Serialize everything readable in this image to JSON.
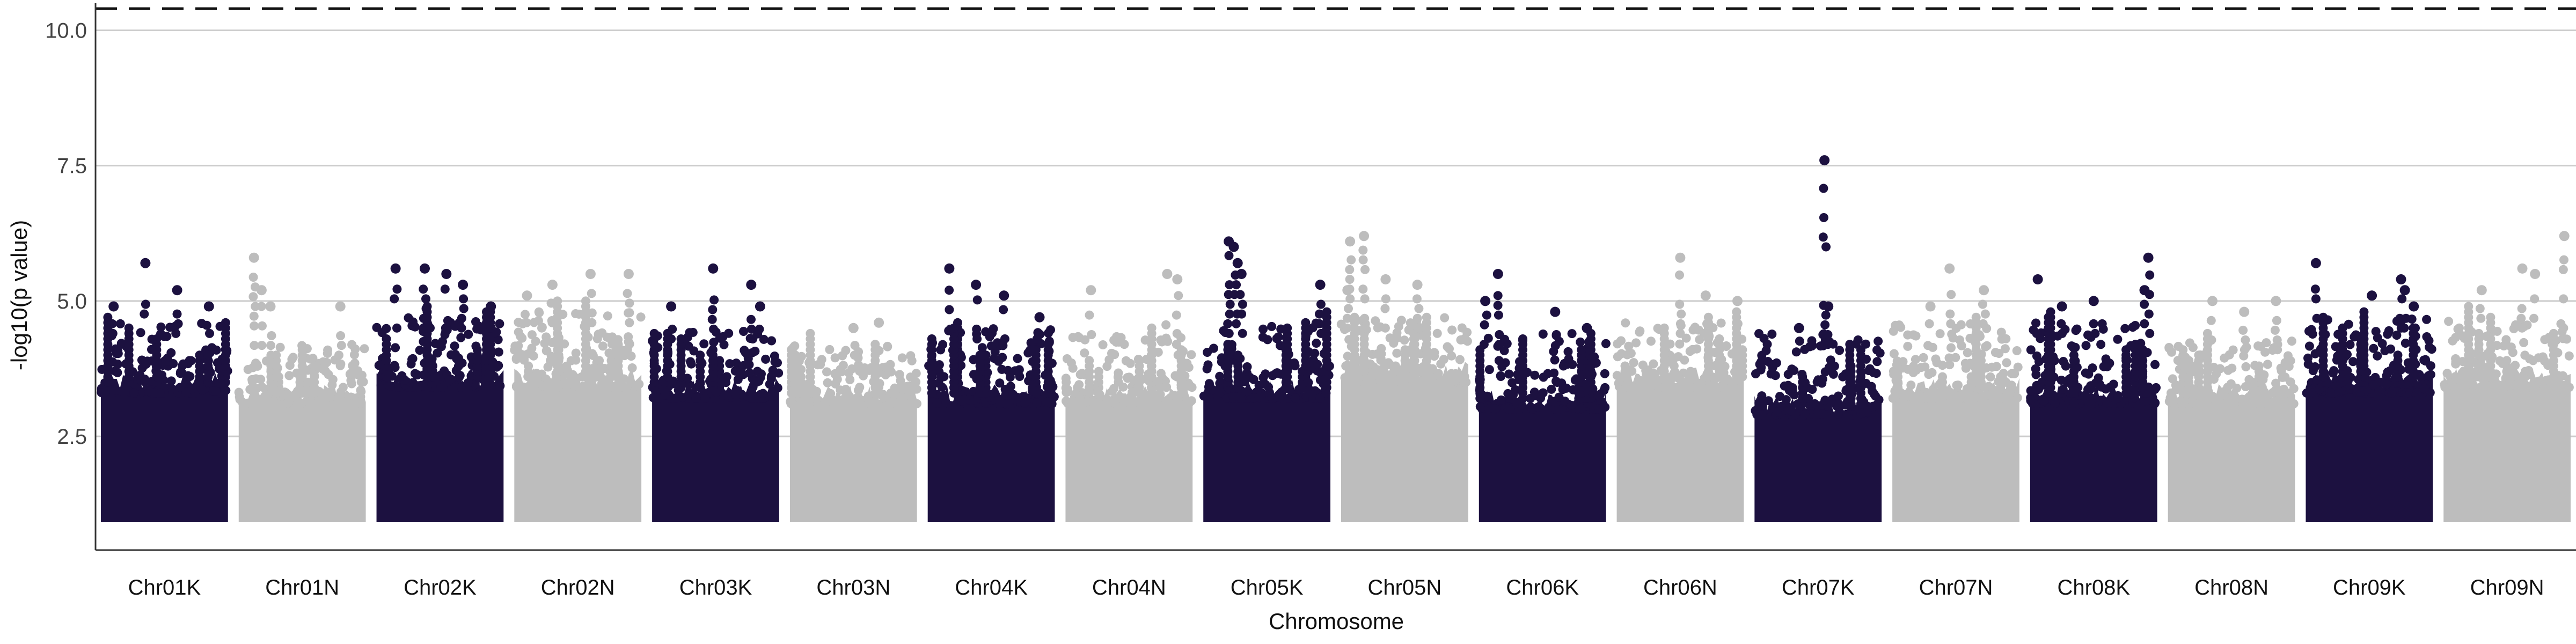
{
  "chart_data": {
    "type": "scatter",
    "subtype": "manhattan",
    "title": "",
    "xlabel": "Chromosome",
    "ylabel": "-log10(p value)",
    "ylim": [
      0.4,
      10.5
    ],
    "yticks": [
      2.5,
      5.0,
      7.5,
      10.0
    ],
    "ytick_labels": [
      "2.5",
      "5.0",
      "7.5",
      "10.0"
    ],
    "grid": "horizontal major lines only",
    "legend": "none",
    "colors": {
      "K": "#1c1140",
      "N": "#bdbdbd",
      "threshold": "#111111",
      "grid": "#cccccc"
    },
    "point_floor": 1.0,
    "threshold": {
      "y": 10.4,
      "style": "dashed"
    },
    "chromosomes": [
      {
        "name": "Chr01K",
        "color": "K",
        "dense_top": 3.5,
        "spike_top": 4.4,
        "peaks": [
          [
            0.35,
            5.7
          ],
          [
            0.1,
            4.9
          ],
          [
            0.6,
            5.2
          ],
          [
            0.85,
            4.9
          ]
        ]
      },
      {
        "name": "Chr01N",
        "color": "N",
        "dense_top": 3.3,
        "spike_top": 4.0,
        "peaks": [
          [
            0.12,
            5.8
          ],
          [
            0.18,
            5.2
          ],
          [
            0.25,
            4.9
          ],
          [
            0.8,
            4.9
          ]
        ]
      },
      {
        "name": "Chr02K",
        "color": "K",
        "dense_top": 3.6,
        "spike_top": 4.5,
        "peaks": [
          [
            0.15,
            5.6
          ],
          [
            0.38,
            5.6
          ],
          [
            0.55,
            5.5
          ],
          [
            0.68,
            5.3
          ],
          [
            0.9,
            4.9
          ]
        ]
      },
      {
        "name": "Chr02N",
        "color": "N",
        "dense_top": 3.6,
        "spike_top": 4.6,
        "peaks": [
          [
            0.1,
            5.1
          ],
          [
            0.3,
            5.3
          ],
          [
            0.6,
            5.5
          ],
          [
            0.9,
            5.5
          ]
        ]
      },
      {
        "name": "Chr03K",
        "color": "K",
        "dense_top": 3.4,
        "spike_top": 4.3,
        "peaks": [
          [
            0.15,
            4.9
          ],
          [
            0.48,
            5.6
          ],
          [
            0.78,
            5.3
          ],
          [
            0.85,
            4.9
          ]
        ]
      },
      {
        "name": "Chr03N",
        "color": "N",
        "dense_top": 3.3,
        "spike_top": 4.0,
        "peaks": [
          [
            0.5,
            4.5
          ],
          [
            0.7,
            4.6
          ]
        ]
      },
      {
        "name": "Chr04K",
        "color": "K",
        "dense_top": 3.3,
        "spike_top": 4.3,
        "peaks": [
          [
            0.17,
            5.6
          ],
          [
            0.38,
            5.3
          ],
          [
            0.6,
            5.1
          ],
          [
            0.88,
            4.7
          ]
        ]
      },
      {
        "name": "Chr04N",
        "color": "N",
        "dense_top": 3.3,
        "spike_top": 4.2,
        "peaks": [
          [
            0.2,
            5.2
          ],
          [
            0.8,
            5.5
          ],
          [
            0.88,
            5.4
          ]
        ]
      },
      {
        "name": "Chr05K",
        "color": "K",
        "dense_top": 3.4,
        "spike_top": 4.4,
        "peaks": [
          [
            0.2,
            6.1
          ],
          [
            0.24,
            6.0
          ],
          [
            0.27,
            5.7
          ],
          [
            0.3,
            5.5
          ],
          [
            0.92,
            5.3
          ]
        ]
      },
      {
        "name": "Chr05N",
        "color": "N",
        "dense_top": 3.7,
        "spike_top": 4.5,
        "peaks": [
          [
            0.07,
            6.1
          ],
          [
            0.18,
            6.2
          ],
          [
            0.05,
            5.2
          ],
          [
            0.35,
            5.4
          ],
          [
            0.6,
            5.3
          ]
        ]
      },
      {
        "name": "Chr06K",
        "color": "K",
        "dense_top": 3.2,
        "spike_top": 4.2,
        "peaks": [
          [
            0.05,
            5.0
          ],
          [
            0.15,
            5.5
          ],
          [
            0.6,
            4.8
          ],
          [
            0.85,
            4.5
          ]
        ]
      },
      {
        "name": "Chr06N",
        "color": "N",
        "dense_top": 3.6,
        "spike_top": 4.4,
        "peaks": [
          [
            0.5,
            5.8
          ],
          [
            0.7,
            5.1
          ],
          [
            0.95,
            5.0
          ]
        ]
      },
      {
        "name": "Chr07K",
        "color": "K",
        "dense_top": 3.1,
        "spike_top": 4.2,
        "peaks": [
          [
            0.55,
            7.6
          ],
          [
            0.58,
            4.9
          ],
          [
            0.35,
            4.5
          ]
        ]
      },
      {
        "name": "Chr07N",
        "color": "N",
        "dense_top": 3.4,
        "spike_top": 4.4,
        "peaks": [
          [
            0.45,
            5.6
          ],
          [
            0.72,
            5.2
          ],
          [
            0.3,
            4.9
          ]
        ]
      },
      {
        "name": "Chr08K",
        "color": "K",
        "dense_top": 3.3,
        "spike_top": 4.4,
        "peaks": [
          [
            0.06,
            5.4
          ],
          [
            0.25,
            4.9
          ],
          [
            0.5,
            5.0
          ],
          [
            0.93,
            5.8
          ],
          [
            0.9,
            5.2
          ]
        ]
      },
      {
        "name": "Chr08N",
        "color": "N",
        "dense_top": 3.3,
        "spike_top": 4.1,
        "peaks": [
          [
            0.35,
            5.0
          ],
          [
            0.6,
            4.8
          ],
          [
            0.85,
            5.0
          ]
        ]
      },
      {
        "name": "Chr09K",
        "color": "K",
        "dense_top": 3.5,
        "spike_top": 4.5,
        "peaks": [
          [
            0.08,
            5.7
          ],
          [
            0.52,
            5.1
          ],
          [
            0.75,
            5.4
          ],
          [
            0.78,
            5.2
          ],
          [
            0.85,
            4.9
          ]
        ]
      },
      {
        "name": "Chr09N",
        "color": "N",
        "dense_top": 3.6,
        "spike_top": 4.5,
        "peaks": [
          [
            0.3,
            5.2
          ],
          [
            0.62,
            5.6
          ],
          [
            0.72,
            5.5
          ],
          [
            0.95,
            6.2
          ]
        ]
      }
    ]
  }
}
